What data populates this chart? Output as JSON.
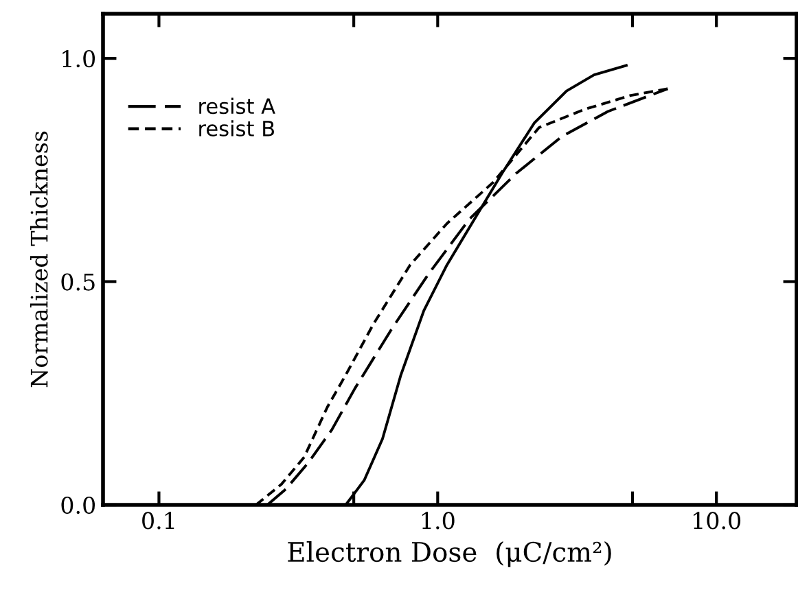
{
  "chart_data": {
    "type": "line",
    "xlabel": "Electron Dose  (μC/cm²)",
    "ylabel": "Normalized Thickness",
    "log": "x",
    "xlim": [
      0.063,
      19.4
    ],
    "ylim": [
      0,
      1.1
    ],
    "xticks": [
      0.1,
      {
        "value": 0.5,
        "label": null
      },
      {
        "value": 1,
        "label": "1.0"
      },
      {
        "value": 5,
        "label": null
      },
      {
        "value": 10,
        "label": "10.0"
      }
    ],
    "yticks": [
      {
        "value": 0,
        "label": "0.0"
      },
      0.5,
      {
        "value": 1,
        "label": "1.0"
      }
    ],
    "grid": false,
    "legend": "top left",
    "series": [
      {
        "color": "#000000",
        "line_style": "solid",
        "x": [
          0.468,
          0.545,
          0.634,
          0.738,
          0.892,
          1.079,
          1.355,
          1.7,
          2.22,
          2.9,
          3.64,
          4.75
        ],
        "values": [
          0,
          0.055,
          0.148,
          0.291,
          0.435,
          0.537,
          0.64,
          0.742,
          0.855,
          0.927,
          0.963,
          0.984
        ]
      },
      {
        "name": "resist A",
        "color": "#000000",
        "line_style": "dashed",
        "x": [
          0.245,
          0.285,
          0.345,
          0.417,
          0.505,
          0.684,
          0.927,
          1.3,
          1.91,
          2.79,
          4.08,
          6.69
        ],
        "values": [
          0,
          0.035,
          0.096,
          0.168,
          0.261,
          0.394,
          0.517,
          0.64,
          0.742,
          0.825,
          0.881,
          0.932
        ]
      },
      {
        "name": "resist B",
        "color": "#000000",
        "line_style": "dotted",
        "x": [
          0.223,
          0.275,
          0.332,
          0.402,
          0.468,
          0.587,
          0.796,
          1.079,
          1.58,
          2.31,
          3.37,
          4.93,
          6.69
        ],
        "values": [
          0,
          0.046,
          0.107,
          0.219,
          0.291,
          0.404,
          0.537,
          0.63,
          0.722,
          0.845,
          0.886,
          0.917,
          0.932
        ]
      }
    ]
  }
}
